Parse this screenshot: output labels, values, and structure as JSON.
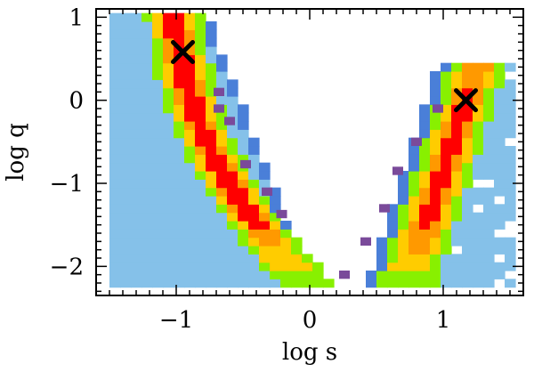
{
  "chart_data": {
    "type": "heatmap",
    "xlabel": "log s",
    "ylabel": "log q",
    "xlim": [
      -1.6,
      1.6
    ],
    "ylim": [
      -2.35,
      1.1
    ],
    "x_ticks": [
      -1,
      0,
      1
    ],
    "x_tick_labels": [
      "−1",
      "0",
      "1"
    ],
    "y_ticks": [
      -2,
      -1,
      0,
      1
    ],
    "y_tick_labels": [
      "−2",
      "−1",
      "0",
      "1"
    ],
    "grid": false,
    "level_colors": {
      "outer": "#85c1e9",
      "blue": "#4a7fd8",
      "purple": "#7a4a9a",
      "green": "#88f000",
      "yellow": "#ffcc00",
      "orange": "#ff9900",
      "red": "#ff0000"
    },
    "best_fit_markers": [
      {
        "x": -0.95,
        "y": 0.58,
        "symbol": "x"
      },
      {
        "x": 1.17,
        "y": 0.0,
        "symbol": "x"
      }
    ]
  }
}
